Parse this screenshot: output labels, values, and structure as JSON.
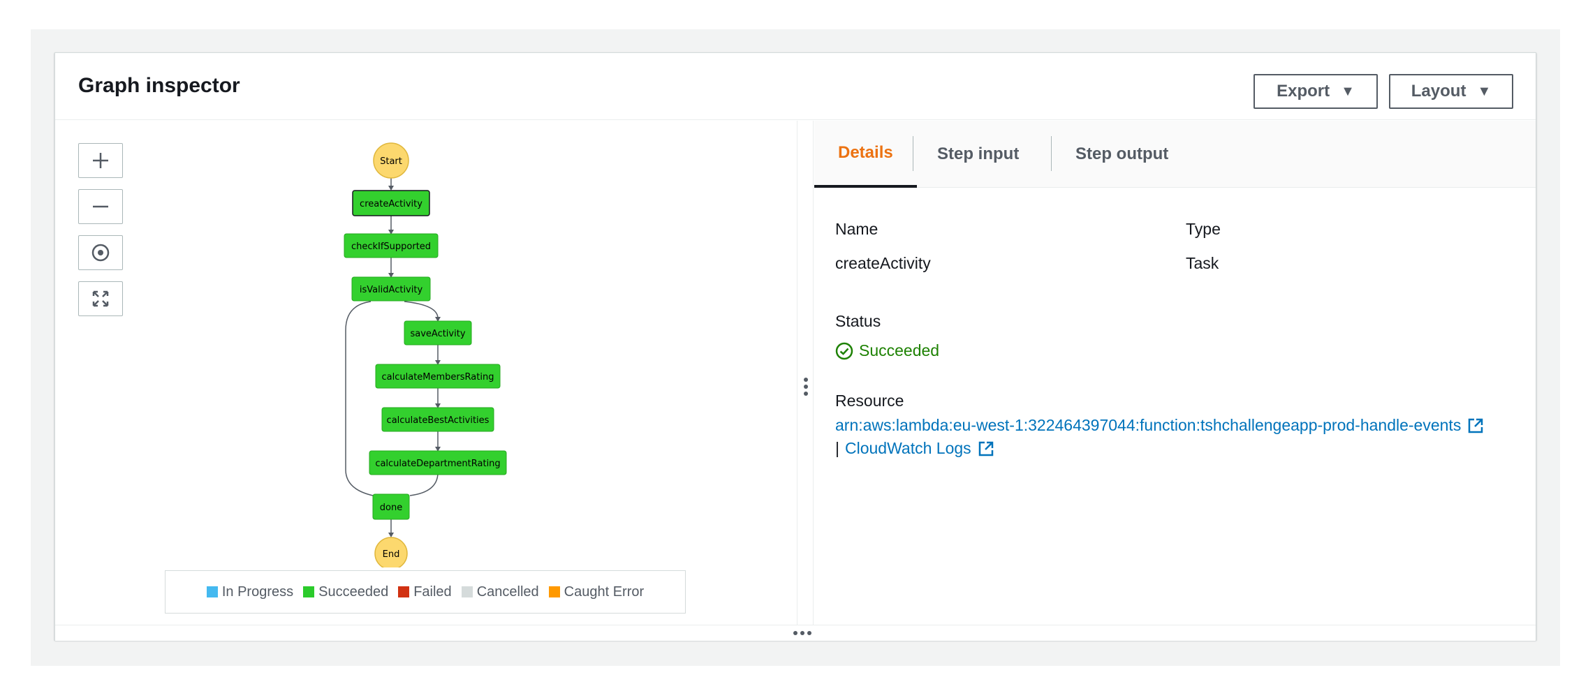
{
  "header": {
    "title": "Graph inspector",
    "export_label": "Export",
    "layout_label": "Layout"
  },
  "graph": {
    "start_label": "Start",
    "end_label": "End",
    "nodes": [
      "createActivity",
      "checkIfSupported",
      "isValidActivity",
      "saveActivity",
      "calculateMembersRating",
      "calculateBestActivities",
      "calculateDepartmentRating",
      "done"
    ],
    "node_status": "Succeeded",
    "colors": {
      "succeeded": "#33d02e",
      "start_end": "#fcd86e"
    }
  },
  "legend": {
    "items": [
      {
        "label": "In Progress",
        "color": "#44b9f0"
      },
      {
        "label": "Succeeded",
        "color": "#2bcb2b"
      },
      {
        "label": "Failed",
        "color": "#d13212"
      },
      {
        "label": "Cancelled",
        "color": "#d5dbdb"
      },
      {
        "label": "Caught Error",
        "color": "#ff9900"
      }
    ]
  },
  "tabs": [
    {
      "label": "Details",
      "active": true
    },
    {
      "label": "Step input",
      "active": false
    },
    {
      "label": "Step output",
      "active": false
    }
  ],
  "details": {
    "name_label": "Name",
    "name_value": "createActivity",
    "type_label": "Type",
    "type_value": "Task",
    "status_label": "Status",
    "status_value": "Succeeded",
    "resource_label": "Resource",
    "resource_arn": "arn:aws:lambda:eu-west-1:322464397044:function:tshchallengeapp-prod-handle-events",
    "separator": "|",
    "cloudwatch_label": "CloudWatch Logs"
  }
}
